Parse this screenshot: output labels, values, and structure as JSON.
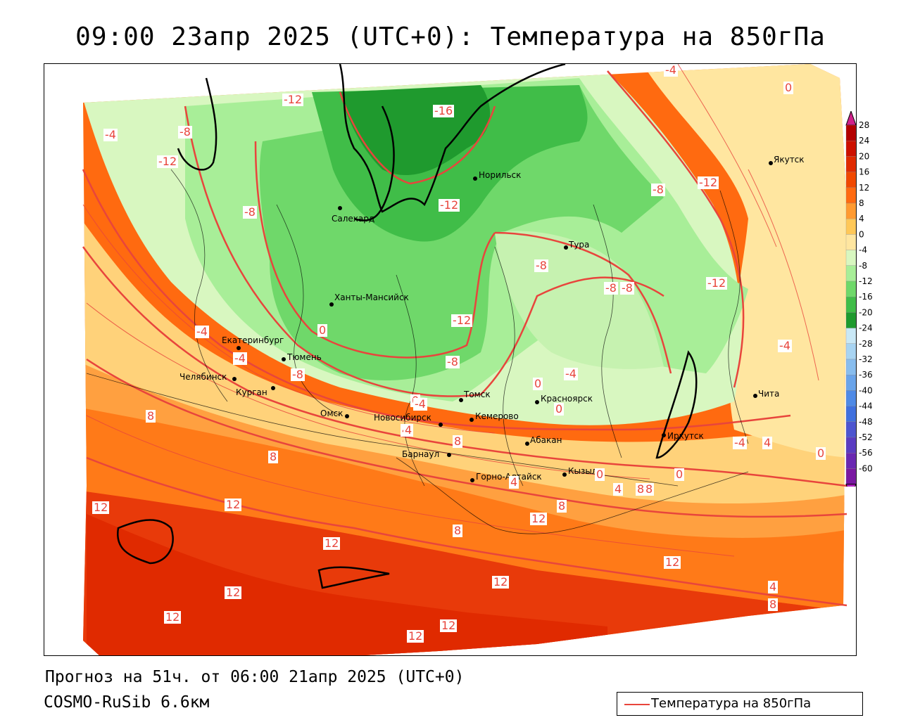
{
  "title": "09:00 23апр 2025 (UTC+0): Температура на 850гПа",
  "forecast_line": "Прогноз на 51ч. от 06:00 21апр 2025 (UTC+0)",
  "model_line": "COSMO-RuSib 6.6км",
  "legend": {
    "label": "Температура на 850гПа",
    "line_color": "#e8453c"
  },
  "colorbar": {
    "ticks": [
      "28",
      "24",
      "20",
      "16",
      "12",
      "8",
      "4",
      "0",
      "-4",
      "-8",
      "-12",
      "-16",
      "-20",
      "-24",
      "-28",
      "-32",
      "-36",
      "-40",
      "-44",
      "-48",
      "-52",
      "-56",
      "-60"
    ],
    "colors": [
      "#b30000",
      "#cc1000",
      "#e02a00",
      "#f04800",
      "#ff6a10",
      "#ff9a30",
      "#ffc858",
      "#ffe6a0",
      "#d8f7c0",
      "#a8ee98",
      "#6fd86a",
      "#40bd48",
      "#1f9a2e",
      "#c9e8f6",
      "#a8d4f2",
      "#88bdee",
      "#6aa4ea",
      "#4f8ae6",
      "#4070de",
      "#4d55d0",
      "#5a3cc2",
      "#6a28b2",
      "#7a18a2"
    ],
    "top_arrow_color": "#d0208a",
    "bottom_arrow_color": "#b020c0"
  },
  "cities": [
    {
      "name": "Якутск"
    },
    {
      "name": "Норильск"
    },
    {
      "name": "Салехард"
    },
    {
      "name": "Тура"
    },
    {
      "name": "Ханты-Мансийск"
    },
    {
      "name": "Екатеринбург"
    },
    {
      "name": "Тюмень"
    },
    {
      "name": "Челябинск"
    },
    {
      "name": "Курган"
    },
    {
      "name": "Омск"
    },
    {
      "name": "Новосибирск"
    },
    {
      "name": "Томск"
    },
    {
      "name": "Кемерово"
    },
    {
      "name": "Красноярск"
    },
    {
      "name": "Абакан"
    },
    {
      "name": "Барнаул"
    },
    {
      "name": "Горно-Алтайск"
    },
    {
      "name": "Кызыл"
    },
    {
      "name": "Иркутск"
    },
    {
      "name": "Чита"
    }
  ],
  "isotherm_labels": [
    "-4",
    "0",
    "-12",
    "-16",
    "-8",
    "-4",
    "-12",
    "-8",
    "-12",
    "-12",
    "-8",
    "-8",
    "-8",
    "-8",
    "-12",
    "-12",
    "0",
    "-4",
    "-8",
    "-4",
    "-4",
    "0",
    "-4",
    "0",
    "-4",
    "0",
    "4",
    "8",
    "8",
    "8",
    "12",
    "12",
    "12",
    "12",
    "12",
    "12",
    "12",
    "12",
    "8",
    "8",
    "12",
    "8",
    "4",
    "4",
    "0",
    "0",
    "4",
    "8",
    "12",
    "4",
    "8",
    "-4",
    "4",
    "-8",
    "0"
  ]
}
